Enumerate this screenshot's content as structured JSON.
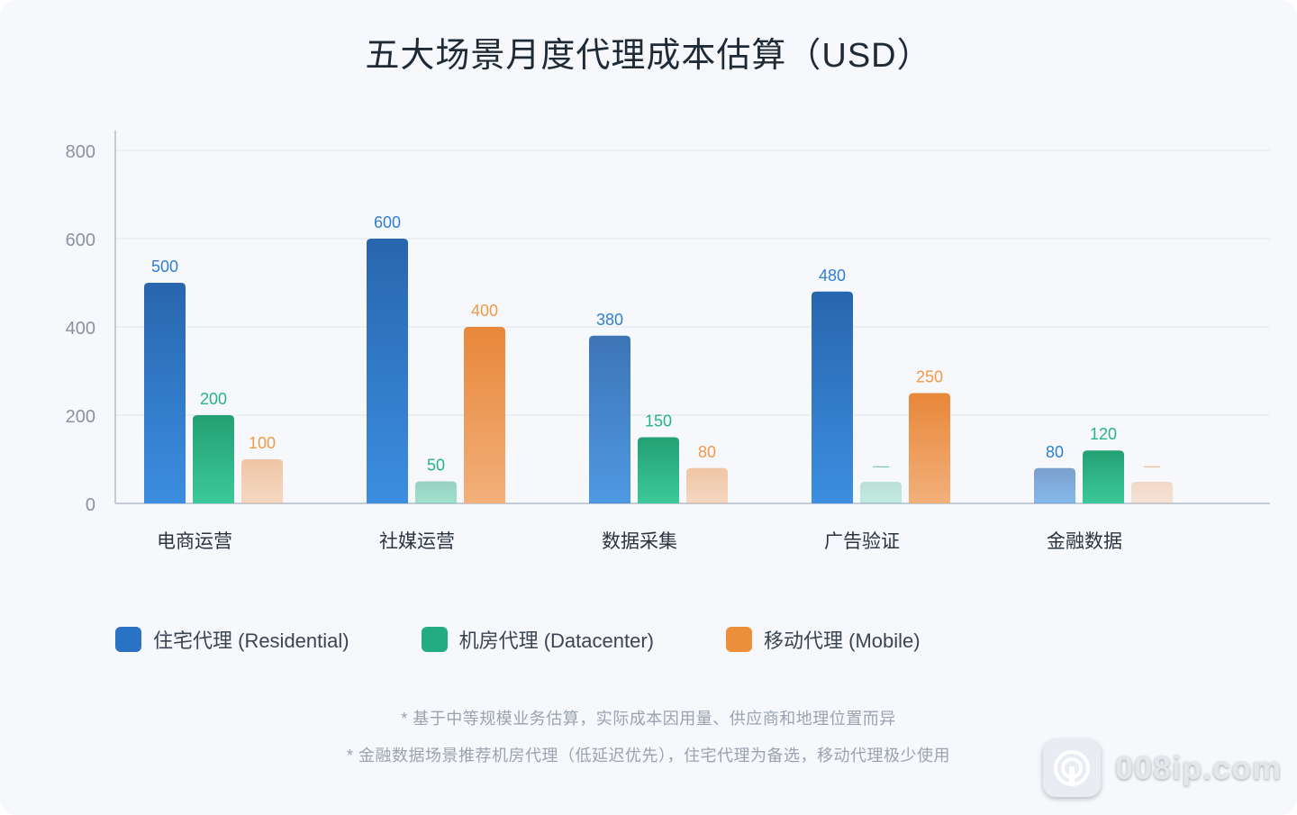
{
  "chart_data": {
    "type": "bar",
    "title": "五大场景月度代理成本估算（USD）",
    "xlabel": "",
    "ylabel": "",
    "ylim": [
      0,
      800
    ],
    "yticks": [
      0,
      200,
      400,
      600,
      800
    ],
    "grid": true,
    "legend_position": "bottom",
    "categories": [
      "电商运营",
      "社媒运营",
      "数据采集",
      "广告验证",
      "金融数据"
    ],
    "series": [
      {
        "name": "住宅代理 (Residential)",
        "color": "#2f7fd0",
        "values": [
          500,
          600,
          380,
          480,
          80
        ],
        "labels": [
          "500",
          "600",
          "380",
          "480",
          "80"
        ]
      },
      {
        "name": "机房代理 (Datacenter)",
        "color": "#25b484",
        "values": [
          200,
          50,
          150,
          null,
          120
        ],
        "labels": [
          "200",
          "50",
          "150",
          "—",
          "120"
        ]
      },
      {
        "name": "移动代理 (Mobile)",
        "color": "#ef9a4a",
        "values": [
          100,
          400,
          80,
          250,
          null
        ],
        "labels": [
          "100",
          "400",
          "80",
          "250",
          "—"
        ]
      }
    ]
  },
  "legend": [
    {
      "label": "住宅代理 (Residential)",
      "color": "#2a72c4"
    },
    {
      "label": "机房代理 (Datacenter)",
      "color": "#22ac7f"
    },
    {
      "label": "移动代理 (Mobile)",
      "color": "#ec8f3b"
    }
  ],
  "notes": {
    "line1": "* 基于中等规模业务估算，实际成本因用量、供应商和地理位置而异",
    "line2": "* 金融数据场景推荐机房代理（低延迟优先），住宅代理为备选，移动代理极少使用"
  },
  "watermark": {
    "text": "008ip.com",
    "icon": "signal-broadcast-icon"
  }
}
